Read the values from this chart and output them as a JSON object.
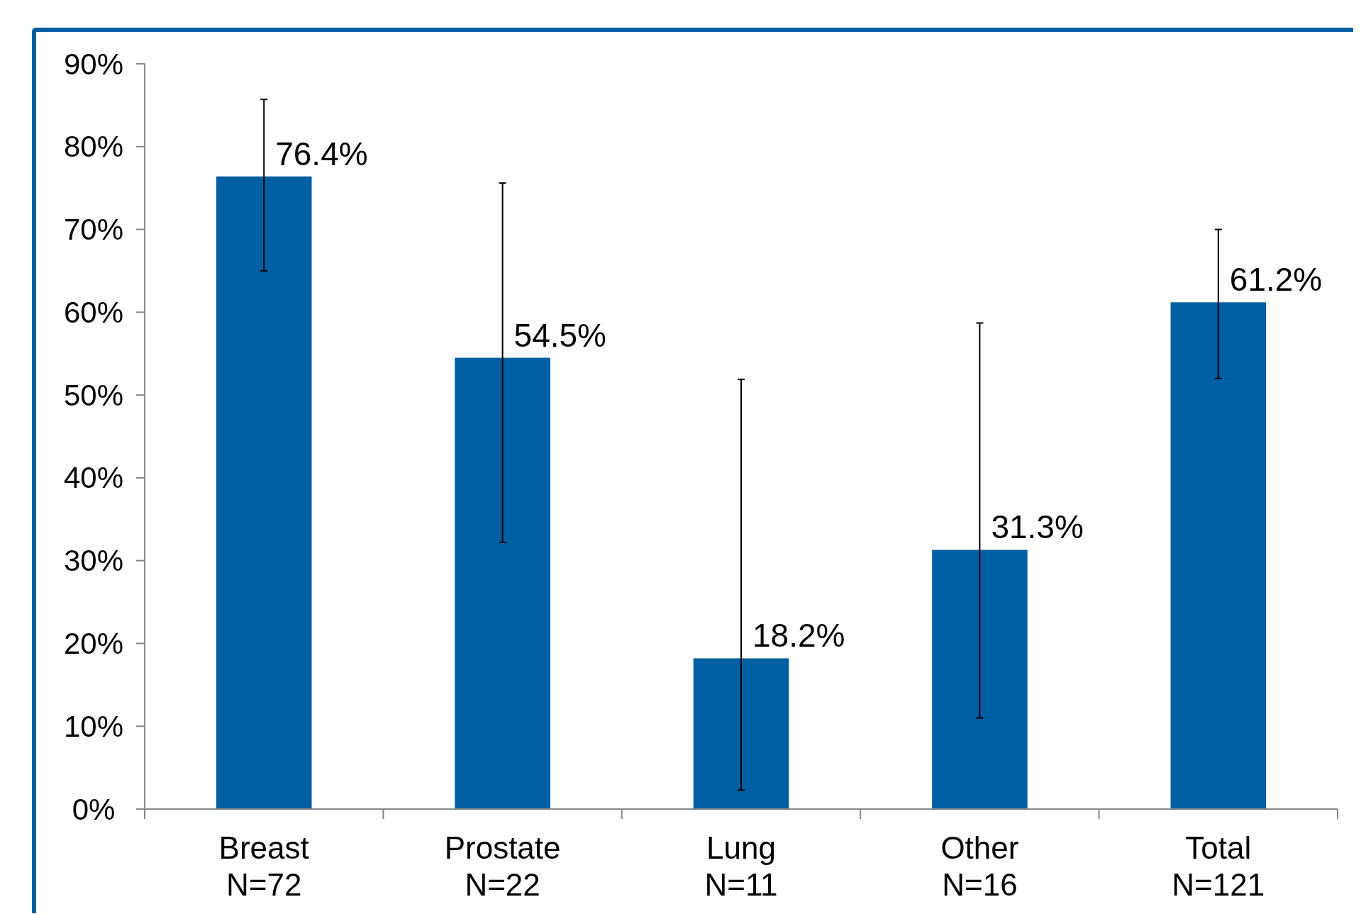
{
  "chart_data": {
    "type": "bar",
    "categories": [
      "Breast\nN=72",
      "Prostate\nN=22",
      "Lung\nN=11",
      "Other\nN=16",
      "Total\nN=121"
    ],
    "values": [
      76.4,
      54.5,
      18.2,
      31.3,
      61.2
    ],
    "value_labels": [
      "76.4%",
      "54.5%",
      "18.2%",
      "31.3%",
      "61.2%"
    ],
    "errors": [
      [
        65.0,
        85.7
      ],
      [
        32.2,
        75.6
      ],
      [
        2.3,
        51.9
      ],
      [
        11.0,
        58.7
      ],
      [
        52.0,
        70.0
      ]
    ],
    "color": "#005ea2",
    "ylim": [
      0,
      90
    ],
    "yticks": [
      {
        "value": 0,
        "label": "0%"
      },
      {
        "value": 10,
        "label": "10%"
      },
      {
        "value": 20,
        "label": "20%"
      },
      {
        "value": 30,
        "label": "30%"
      },
      {
        "value": 40,
        "label": "40%"
      },
      {
        "value": 50,
        "label": "50%"
      },
      {
        "value": 60,
        "label": "60%"
      },
      {
        "value": 70,
        "label": "70%"
      },
      {
        "value": 80,
        "label": "80%"
      },
      {
        "value": 90,
        "label": "90%"
      }
    ],
    "grid": false
  }
}
